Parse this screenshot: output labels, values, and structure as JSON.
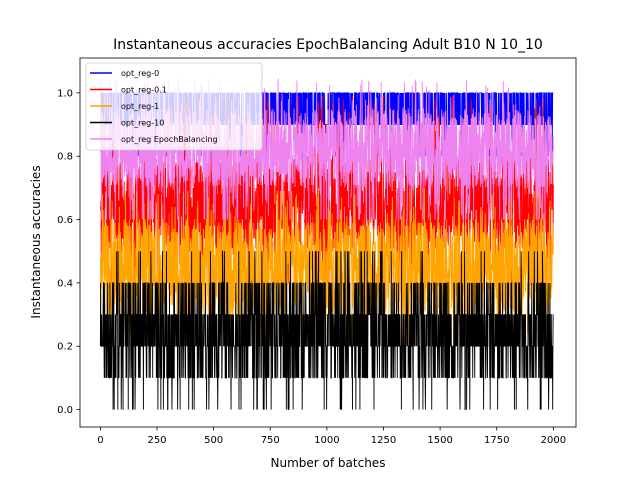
{
  "chart_data": {
    "type": "line",
    "title": "Instantaneous accuracies EpochBalancing Adult B10 N 10_10",
    "xlabel": "Number of batches",
    "ylabel": "Instantaneous accuracies",
    "xlim": [
      -90,
      2100
    ],
    "ylim": [
      -0.055,
      1.11
    ],
    "xticks": [
      0,
      250,
      500,
      750,
      1000,
      1250,
      1500,
      1750,
      2000
    ],
    "xtick_labels": [
      "0",
      "250",
      "500",
      "750",
      "1000",
      "1250",
      "1500",
      "1750",
      "2000"
    ],
    "yticks": [
      0.0,
      0.2,
      0.4,
      0.6,
      0.8,
      1.0
    ],
    "ytick_labels": [
      "0.0",
      "0.2",
      "0.4",
      "0.6",
      "0.8",
      "1.0"
    ],
    "n_batches": 2000,
    "grid": false,
    "legend_position": "top-left",
    "series": [
      {
        "name": "opt_reg-0",
        "color": "#0000ff",
        "band_low": 0.8,
        "band_high": 1.0,
        "typical_low": 0.85,
        "typical_high": 1.0,
        "outlier_low": 0.7,
        "quantum": 0.1
      },
      {
        "name": "opt_reg-0.1",
        "color": "#ff0000",
        "band_low": 0.4,
        "band_high": 1.0,
        "typical_low": 0.5,
        "typical_high": 0.8,
        "outlier_low": 0.3,
        "quantum": 0.01
      },
      {
        "name": "opt_reg-1",
        "color": "#ffa500",
        "band_low": 0.2,
        "band_high": 0.7,
        "typical_low": 0.3,
        "typical_high": 0.6,
        "outlier_low": 0.1,
        "quantum": 0.01
      },
      {
        "name": "opt_reg-10",
        "color": "#000000",
        "band_low": 0.0,
        "band_high": 0.5,
        "typical_low": 0.1,
        "typical_high": 0.4,
        "outlier_low": 0.0,
        "quantum": 0.1
      },
      {
        "name": "opt_reg EpochBalancing",
        "color": "#ee82ee",
        "band_low": 0.6,
        "band_high": 1.05,
        "typical_low": 0.7,
        "typical_high": 0.95,
        "outlier_low": 0.5,
        "quantum": 0.001
      }
    ]
  }
}
